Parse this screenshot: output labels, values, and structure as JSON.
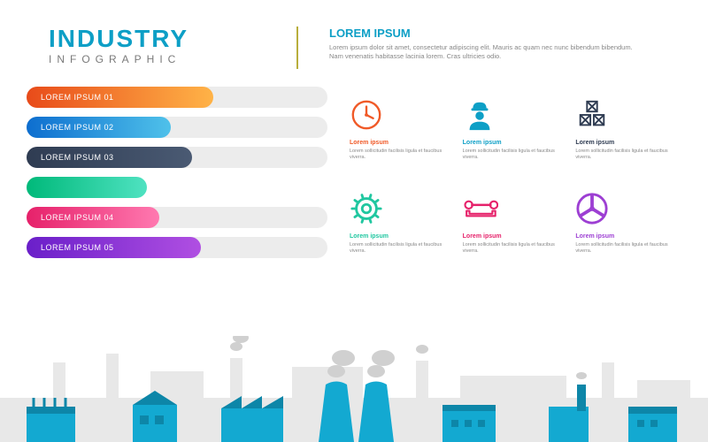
{
  "background_color": "#ffffff",
  "header": {
    "title_main": "INDUSTRY",
    "title_sub": "INFOGRAPHIC",
    "title_color": "#0d9fc6",
    "subtitle_color": "#7a7a7a",
    "divider_color": "#b8ae3c",
    "intro_title": "LOREM IPSUM",
    "intro_title_color": "#0d9fc6",
    "intro_body": "Lorem ipsum dolor sit amet, consectetur adipiscing elit. Mauris ac quam nec nunc bibendum bibendum. Nam venenatis habitasse lacinia lorem. Cras ultricies odio.",
    "intro_body_color": "#888888"
  },
  "bars": {
    "track_color": "#ececec",
    "track_radius": 12,
    "height": 24,
    "label_color": "#ffffff",
    "label_fontsize": 9,
    "items": [
      {
        "label": "LOREM IPSUM 01",
        "fill_pct": 62,
        "gradient_from": "#e84b1a",
        "gradient_to": "#ffb347"
      },
      {
        "label": "LOREM IPSUM 02",
        "fill_pct": 48,
        "gradient_from": "#0d6ecf",
        "gradient_to": "#4fc1ea"
      },
      {
        "label": "LOREM IPSUM 03",
        "fill_pct": 55,
        "gradient_from": "#2f3c52",
        "gradient_to": "#4a5a73"
      },
      {
        "label": "LOREM IPSUM 04",
        "fill_pct": 44,
        "gradient_from": "#e6216a",
        "gradient_to": "#ff79b0"
      },
      {
        "label": "LOREM IPSUM 05",
        "fill_pct": 58,
        "gradient_from": "#6a1fc9",
        "gradient_to": "#b04fe2"
      }
    ],
    "extra_standalone": {
      "fill_pct": 40,
      "gradient_from": "#00b97a",
      "gradient_to": "#4fe2c1"
    }
  },
  "icons": {
    "body_color": "#888888",
    "body_text": "Lorem sollicitudin facilisis ligula et faucibus viverra.",
    "items": [
      {
        "name": "clock-icon",
        "title": "Lorem ipsum",
        "title_color": "#f05a28",
        "icon_color": "#f05a28"
      },
      {
        "name": "worker-icon",
        "title": "Lorem ipsum",
        "title_color": "#0d9fc6",
        "icon_color": "#0d9fc6"
      },
      {
        "name": "boxes-icon",
        "title": "Lorem ipsum",
        "title_color": "#2f3c52",
        "icon_color": "#2f3c52"
      },
      {
        "name": "gear-icon",
        "title": "Lorem ipsum",
        "title_color": "#20c7a0",
        "icon_color": "#20c7a0"
      },
      {
        "name": "wrench-icon",
        "title": "Lorem ipsum",
        "title_color": "#e6216a",
        "icon_color": "#e6216a"
      },
      {
        "name": "turbine-icon",
        "title": "Lorem ipsum",
        "title_color": "#9d3fd3",
        "icon_color": "#9d3fd3"
      }
    ]
  },
  "factory": {
    "silhouette_color": "#e8e8e8",
    "foreground_color": "#13a9d1",
    "foreground_color_dark": "#0d86a8",
    "smoke_color": "#d0d0d0"
  }
}
